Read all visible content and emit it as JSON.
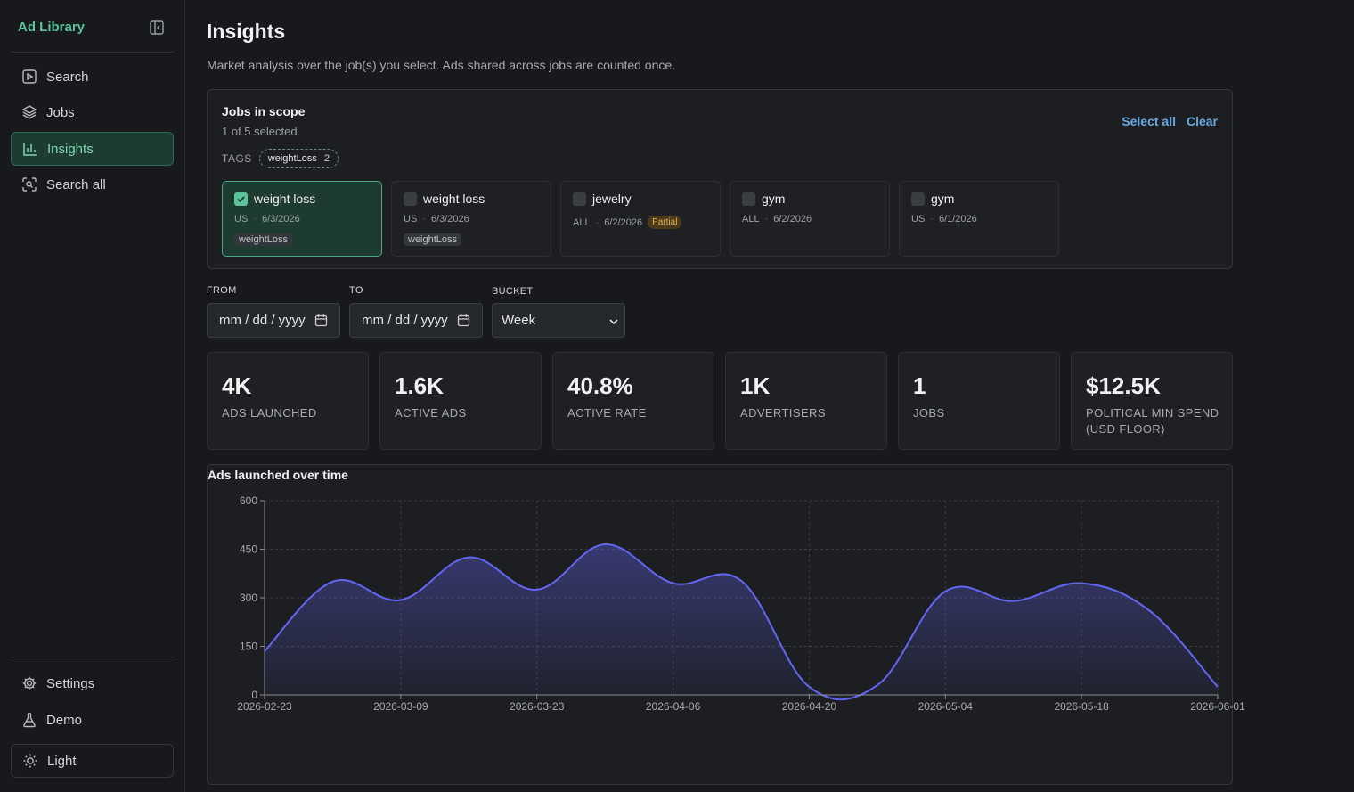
{
  "sidebar": {
    "brand": "Ad Library",
    "items": [
      {
        "label": "Search",
        "icon": "play-square-icon"
      },
      {
        "label": "Jobs",
        "icon": "layers-icon"
      },
      {
        "label": "Insights",
        "icon": "bar-chart-icon"
      },
      {
        "label": "Search all",
        "icon": "scan-search-icon"
      }
    ],
    "bottom": [
      {
        "label": "Settings",
        "icon": "gear-icon"
      },
      {
        "label": "Demo",
        "icon": "flask-icon"
      },
      {
        "label": "Light",
        "icon": "sun-icon"
      }
    ]
  },
  "page": {
    "title": "Insights",
    "subtitle": "Market analysis over the job(s) you select. Ads shared across jobs are counted once."
  },
  "scope": {
    "title": "Jobs in scope",
    "count": "1 of 5 selected",
    "select_all": "Select all",
    "clear": "Clear",
    "tags_label": "TAGS",
    "tags": [
      {
        "name": "weightLoss",
        "count": "2"
      }
    ],
    "jobs": [
      {
        "name": "weight loss",
        "region": "US",
        "date": "6/3/2026",
        "tag": "weightLoss",
        "selected": true
      },
      {
        "name": "weight loss",
        "region": "US",
        "date": "6/3/2026",
        "tag": "weightLoss",
        "selected": false
      },
      {
        "name": "jewelry",
        "region": "ALL",
        "date": "6/2/2026",
        "badge": "Partial",
        "selected": false
      },
      {
        "name": "gym",
        "region": "ALL",
        "date": "6/2/2026",
        "selected": false
      },
      {
        "name": "gym",
        "region": "US",
        "date": "6/1/2026",
        "selected": false
      }
    ]
  },
  "filters": {
    "from_label": "FROM",
    "to_label": "TO",
    "bucket_label": "BUCKET",
    "from_placeholder": "mm / dd / yyyy",
    "to_placeholder": "mm / dd / yyyy",
    "bucket_value": "Week"
  },
  "stats": [
    {
      "value": "4K",
      "label": "ADS LAUNCHED"
    },
    {
      "value": "1.6K",
      "label": "ACTIVE ADS"
    },
    {
      "value": "40.8%",
      "label": "ACTIVE RATE"
    },
    {
      "value": "1K",
      "label": "ADVERTISERS"
    },
    {
      "value": "1",
      "label": "JOBS"
    },
    {
      "value": "$12.5K",
      "label": "POLITICAL MIN SPEND (USD FLOOR)"
    }
  ],
  "colors": {
    "accent": "#5cc29a",
    "series": "#6366f1",
    "link": "#6aa8e0"
  },
  "chart_data": {
    "type": "area",
    "title": "Ads launched over time",
    "xlabel": "",
    "ylabel": "",
    "ylim": [
      0,
      600
    ],
    "yticks": [
      0,
      150,
      300,
      450,
      600
    ],
    "xticks": [
      "2026-02-23",
      "2026-03-09",
      "2026-03-23",
      "2026-04-06",
      "2026-04-20",
      "2026-05-04",
      "2026-05-18",
      "2026-06-01"
    ],
    "x": [
      "2026-02-23",
      "2026-03-02",
      "2026-03-09",
      "2026-03-16",
      "2026-03-23",
      "2026-03-30",
      "2026-04-06",
      "2026-04-13",
      "2026-04-20",
      "2026-04-27",
      "2026-05-04",
      "2026-05-11",
      "2026-05-18",
      "2026-05-25",
      "2026-06-01"
    ],
    "values": [
      135,
      350,
      293,
      425,
      325,
      465,
      345,
      353,
      25,
      30,
      320,
      290,
      345,
      260,
      25
    ],
    "grid": true
  }
}
